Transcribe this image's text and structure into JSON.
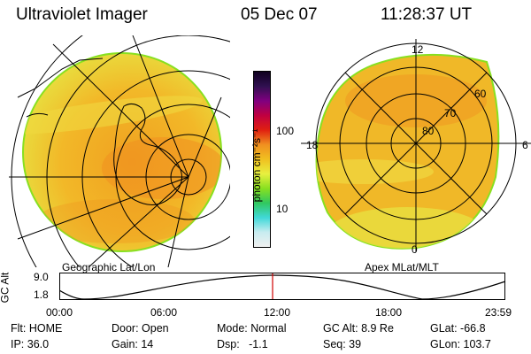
{
  "header": {
    "instrument": "Ultraviolet Imager",
    "date": "05 Dec 07",
    "time": "11:28:37 UT"
  },
  "panels": {
    "left_label": "Geographic Lat/Lon",
    "right_label": "Apex MLat/MLT"
  },
  "colorbar": {
    "unit_label": "photon cm⁻²s⁻¹",
    "tick_100": "100",
    "tick_10": "10",
    "colors": [
      "#f0f0f0",
      "#c8ecf0",
      "#40d8d8",
      "#30c860",
      "#88e020",
      "#e8f040",
      "#f0c020",
      "#f09020",
      "#e02010",
      "#c00040",
      "#800080",
      "#301050",
      "#100020"
    ]
  },
  "polar": {
    "lat_labels": [
      "80",
      "70",
      "60"
    ],
    "mlt_labels": [
      "12",
      "18",
      "6",
      "0"
    ]
  },
  "altitude_plot": {
    "axis_label": "GC Alt",
    "y_ticks": [
      "9.0",
      "1.8"
    ],
    "x_ticks": [
      "00:00",
      "06:00",
      "12:00",
      "18:00",
      "23:59"
    ],
    "current_time_hours": 11.477,
    "marker_color": "#d00000"
  },
  "status": {
    "flt": "Flt: HOME",
    "ip": "IP: 36.0",
    "door": "Door: Open",
    "gain": "Gain: 14",
    "mode": "Mode: Normal",
    "dsp": "Dsp:   -1.1",
    "gcalt": "GC Alt: 8.9 Re",
    "seq": "Seq: 39",
    "glat": "GLat: -66.8",
    "glon": "GLon: 103.7"
  }
}
